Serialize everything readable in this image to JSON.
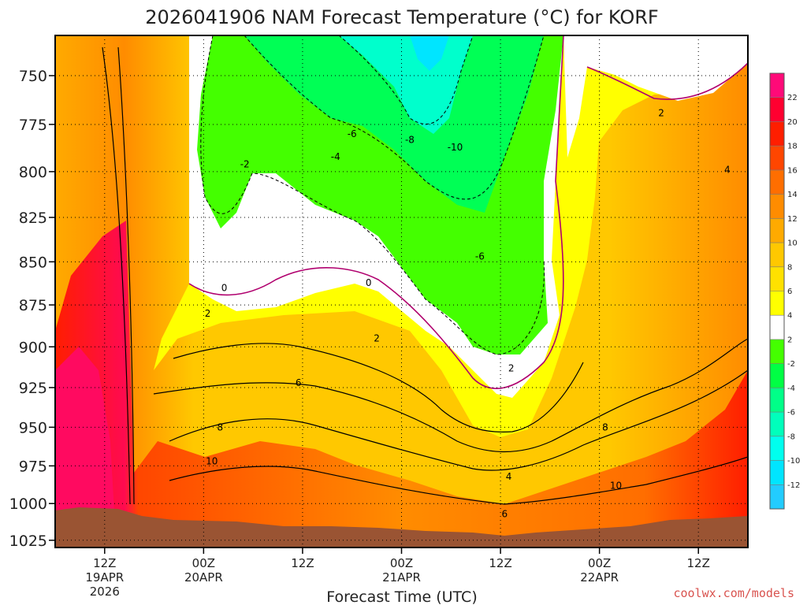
{
  "title": "2026041906 NAM Forecast Temperature (°C) for KORF",
  "watermark": "coolwx.com/models",
  "chart_data": {
    "type": "heatmap",
    "title": "2026041906 NAM Forecast Temperature (°C) for KORF",
    "xlabel": "Forecast Time (UTC)",
    "ylabel": "",
    "y_ticks": [
      750,
      775,
      800,
      825,
      850,
      875,
      900,
      925,
      950,
      975,
      1000,
      1025
    ],
    "ylim": [
      1030,
      730
    ],
    "y_scale": "pressure (hPa), increasing downward",
    "xlim_hours": [
      6,
      90
    ],
    "x_ticks": [
      {
        "h": 12,
        "label": "12Z",
        "sub": "19APR",
        "sub2": "2026"
      },
      {
        "h": 24,
        "label": "00Z",
        "sub": "20APR",
        "sub2": ""
      },
      {
        "h": 36,
        "label": "12Z",
        "sub": "",
        "sub2": ""
      },
      {
        "h": 48,
        "label": "00Z",
        "sub": "21APR",
        "sub2": ""
      },
      {
        "h": 60,
        "label": "12Z",
        "sub": "",
        "sub2": ""
      },
      {
        "h": 72,
        "label": "00Z",
        "sub": "22APR",
        "sub2": ""
      },
      {
        "h": 84,
        "label": "12Z",
        "sub": "",
        "sub2": ""
      }
    ],
    "colorbar": {
      "levels": [
        22,
        20,
        18,
        16,
        14,
        12,
        10,
        8,
        6,
        4,
        2,
        -2,
        -4,
        -6,
        -8,
        -10,
        -12
      ],
      "colors": [
        "#ff0a78",
        "#ff0030",
        "#ff1e00",
        "#ff4600",
        "#ff6e00",
        "#ff8c00",
        "#ffaa00",
        "#ffc800",
        "#ffe100",
        "#ffff00",
        "#ffffff",
        "#44ff00",
        "#00ff44",
        "#00ff88",
        "#00ffbb",
        "#00ffee",
        "#00e5ff",
        "#22ccff"
      ]
    },
    "contour_labels": [
      {
        "h": 49,
        "p": 783,
        "text": "-8"
      },
      {
        "h": 54.5,
        "p": 787,
        "text": "-10"
      },
      {
        "h": 42,
        "p": 780,
        "text": "-6"
      },
      {
        "h": 40,
        "p": 792,
        "text": "-4"
      },
      {
        "h": 29,
        "p": 796,
        "text": "-2"
      },
      {
        "h": 57.5,
        "p": 847,
        "text": "-6"
      },
      {
        "h": 26.5,
        "p": 865,
        "text": "0"
      },
      {
        "h": 44,
        "p": 862,
        "text": "0"
      },
      {
        "h": 24.5,
        "p": 880,
        "text": "2"
      },
      {
        "h": 45,
        "p": 895,
        "text": "2"
      },
      {
        "h": 61.3,
        "p": 913,
        "text": "2"
      },
      {
        "h": 79.5,
        "p": 769,
        "text": "2"
      },
      {
        "h": 35.5,
        "p": 922,
        "text": "6"
      },
      {
        "h": 60.5,
        "p": 1007,
        "text": "6"
      },
      {
        "h": 26,
        "p": 950,
        "text": "8"
      },
      {
        "h": 72.7,
        "p": 950,
        "text": "8"
      },
      {
        "h": 25,
        "p": 972,
        "text": "10"
      },
      {
        "h": 61,
        "p": 982,
        "text": "4"
      },
      {
        "h": 74,
        "p": 988,
        "text": "10"
      },
      {
        "h": 87.5,
        "p": 799,
        "text": "4"
      }
    ]
  }
}
